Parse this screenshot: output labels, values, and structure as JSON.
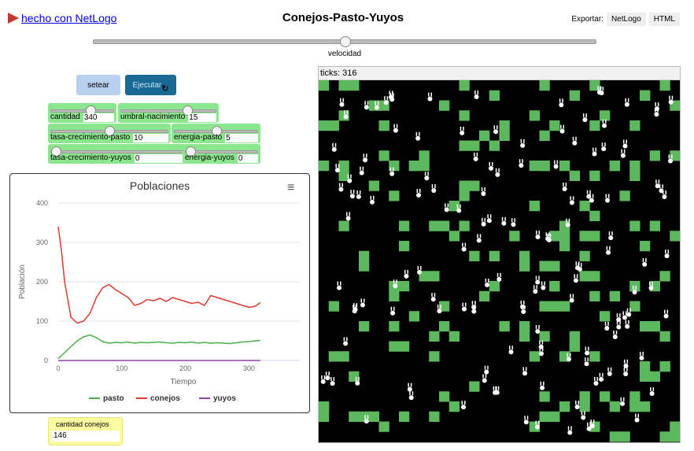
{
  "header": {
    "logo_text": "hecho con NetLogo",
    "title": "Conejos-Pasto-Yuyos",
    "export_label": "Exportar:",
    "export_netlogo": "NetLogo",
    "export_html": "HTML"
  },
  "speed": {
    "label": "velocidad",
    "value": 0.5
  },
  "buttons": {
    "setup": "setear",
    "go": "Ejecutar"
  },
  "sliders": [
    {
      "label": "cantidad",
      "value": "340",
      "fraction": 0.65
    },
    {
      "label": "umbral-nacimiento",
      "value": "15",
      "fraction": 0.72
    },
    {
      "label": "tasa-crecimiento-pasto",
      "value": "10",
      "fraction": 0.5
    },
    {
      "label": "energia-pasto",
      "value": "5",
      "fraction": 0.5
    },
    {
      "label": "tasa-crecimiento-yuyos",
      "value": "0",
      "fraction": 0
    },
    {
      "label": "energia-yuyos",
      "value": "0",
      "fraction": 0
    }
  ],
  "monitor": {
    "label": "cantidad conejos",
    "value": "146"
  },
  "view": {
    "ticks_label": "ticks: 316",
    "grass_color": "#5cb85c",
    "bg": "#000000"
  },
  "colors": {
    "pasto": "#4daf4a",
    "conejos": "#e03a30",
    "yuyos": "#8e44ad"
  },
  "chart_data": {
    "type": "line",
    "title": "Poblaciones",
    "xlabel": "Tiempo",
    "ylabel": "Población",
    "xlim": [
      0,
      380
    ],
    "ylim": [
      0,
      400
    ],
    "xticks": [
      0,
      100,
      200,
      300
    ],
    "yticks": [
      0,
      100,
      200,
      300,
      400
    ],
    "x": [
      0,
      5,
      10,
      20,
      30,
      40,
      50,
      60,
      70,
      80,
      90,
      100,
      110,
      120,
      130,
      140,
      150,
      160,
      170,
      180,
      190,
      200,
      210,
      220,
      230,
      240,
      250,
      260,
      270,
      280,
      290,
      300,
      310,
      318
    ],
    "series": [
      {
        "name": "pasto",
        "values": [
          5,
          12,
          20,
          35,
          50,
          60,
          65,
          58,
          48,
          44,
          46,
          45,
          47,
          44,
          46,
          45,
          46,
          47,
          45,
          44,
          46,
          45,
          47,
          44,
          46,
          44,
          45,
          44,
          43,
          45,
          47,
          48,
          50,
          51
        ]
      },
      {
        "name": "conejos",
        "values": [
          340,
          280,
          200,
          110,
          95,
          100,
          120,
          160,
          185,
          193,
          180,
          170,
          160,
          140,
          145,
          155,
          152,
          158,
          150,
          160,
          155,
          150,
          145,
          148,
          140,
          165,
          160,
          155,
          150,
          145,
          140,
          135,
          138,
          147
        ]
      },
      {
        "name": "yuyos",
        "values": [
          0,
          0,
          0,
          0,
          0,
          0,
          0,
          0,
          0,
          0,
          0,
          0,
          0,
          0,
          0,
          0,
          0,
          0,
          0,
          0,
          0,
          0,
          0,
          0,
          0,
          0,
          0,
          0,
          0,
          0,
          0,
          0,
          0,
          0
        ]
      }
    ]
  }
}
